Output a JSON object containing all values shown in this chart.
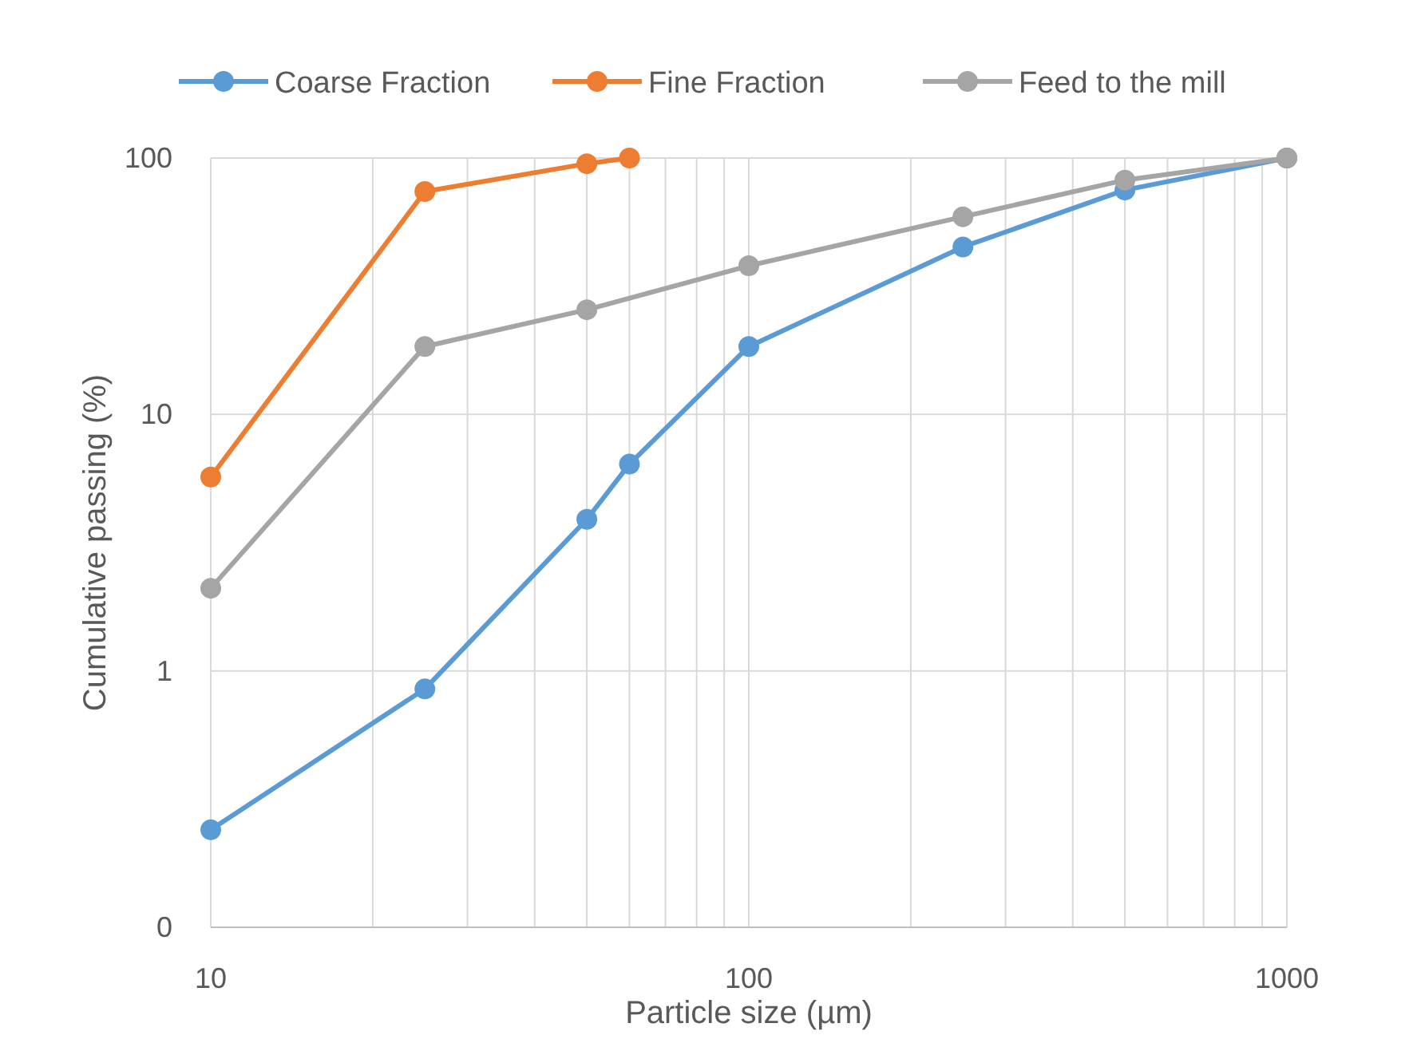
{
  "chart_data": {
    "type": "line",
    "xlabel": "Particle size (µm)",
    "ylabel": "Cumulative passing (%)",
    "log": "xy",
    "grid": true,
    "legend": "top",
    "marker": "circle",
    "line_style": "solid",
    "xlim": [
      10,
      1000
    ],
    "ylim": [
      0.1,
      100
    ],
    "xticks": [
      10,
      {
        "value": 20,
        "label": null
      },
      {
        "value": 30,
        "label": null
      },
      {
        "value": 40,
        "label": null
      },
      {
        "value": 50,
        "label": null
      },
      {
        "value": 60,
        "label": null
      },
      {
        "value": 70,
        "label": null
      },
      {
        "value": 80,
        "label": null
      },
      {
        "value": 90,
        "label": null
      },
      100,
      {
        "value": 200,
        "label": null
      },
      {
        "value": 300,
        "label": null
      },
      {
        "value": 400,
        "label": null
      },
      {
        "value": 500,
        "label": null
      },
      {
        "value": 600,
        "label": null
      },
      {
        "value": 700,
        "label": null
      },
      {
        "value": 800,
        "label": null
      },
      {
        "value": 900,
        "label": null
      },
      1000
    ],
    "yticks": [
      {
        "value": 0.1,
        "label": "0"
      },
      1,
      10,
      100
    ],
    "series": [
      {
        "name": "Coarse Fraction",
        "color": "#5b9bd5",
        "x": [
          10,
          25,
          50,
          60,
          100,
          250,
          500,
          1000
        ],
        "values": [
          0.24,
          0.85,
          3.9,
          6.4,
          18.4,
          45,
          75,
          100
        ]
      },
      {
        "name": "Fine Fraction",
        "color": "#ed7d31",
        "x": [
          10,
          25,
          50,
          60
        ],
        "values": [
          5.7,
          74,
          95,
          100
        ]
      },
      {
        "name": "Feed to the mill",
        "color": "#a5a5a5",
        "x": [
          10,
          25,
          50,
          100,
          250,
          500,
          1000
        ],
        "values": [
          2.1,
          18.4,
          25.6,
          38,
          59,
          82,
          100
        ]
      }
    ]
  }
}
